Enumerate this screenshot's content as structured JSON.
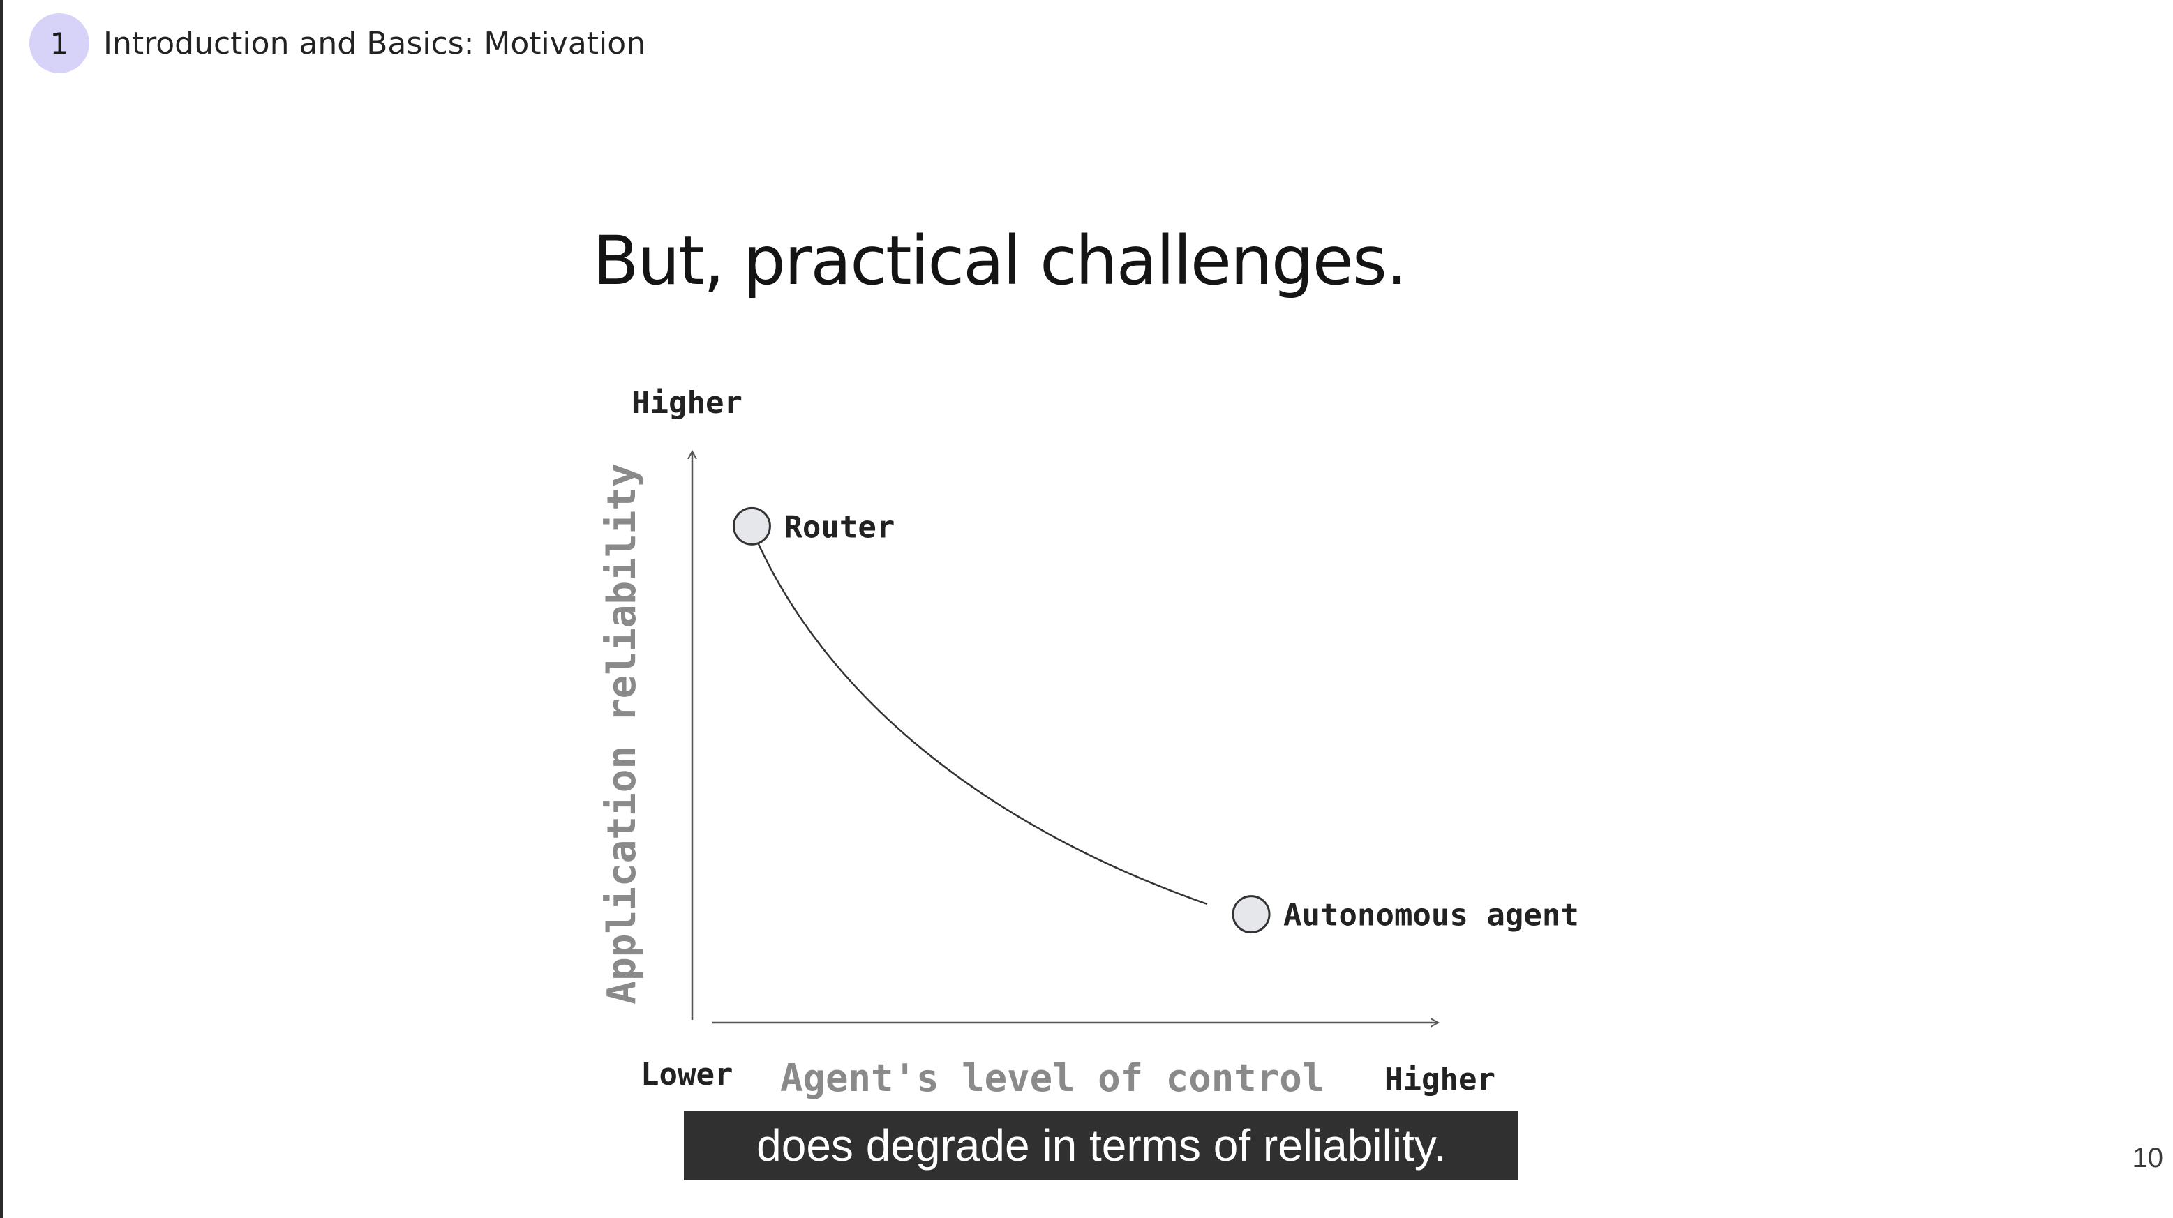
{
  "header": {
    "section_number": "1",
    "section_title": "Introduction and Basics: Motivation"
  },
  "slide": {
    "title": "But, practical challenges.",
    "caption": "does degrade in terms of reliability.",
    "page_number": "10"
  },
  "chart_data": {
    "type": "line",
    "x_axis": {
      "label": "Agent's level of control",
      "low_label": "Lower",
      "high_label": "Higher"
    },
    "y_axis": {
      "label": "Application reliability",
      "high_label": "Higher"
    },
    "points": [
      {
        "name": "Router",
        "control": 0.08,
        "reliability": 0.87
      },
      {
        "name": "Autonomous agent",
        "control": 0.75,
        "reliability": 0.19
      }
    ],
    "colors": {
      "axis": "#555555",
      "curve": "#333333",
      "point_fill": "#e5e7ea",
      "axis_label": "#8a8a8a"
    }
  }
}
